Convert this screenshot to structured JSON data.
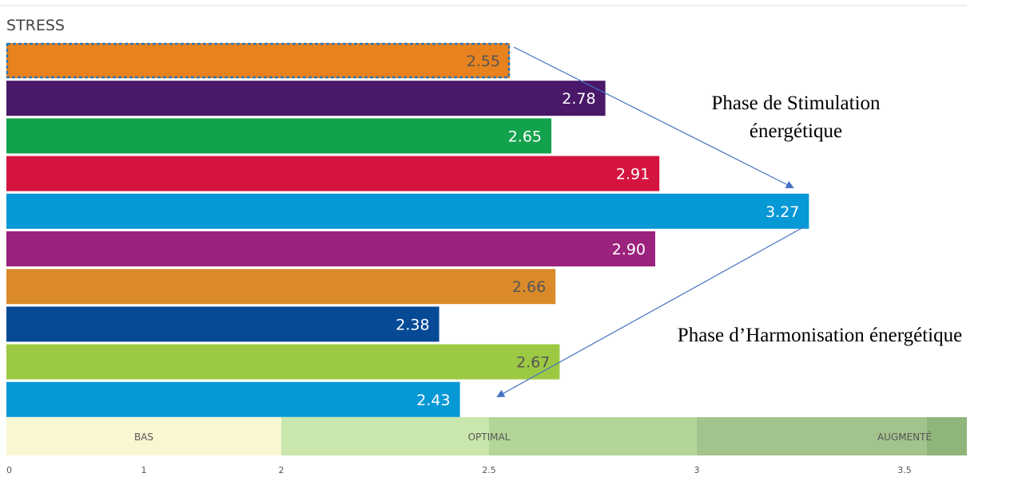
{
  "chart_data": {
    "type": "bar",
    "orientation": "horizontal",
    "title": "STRESS",
    "values": [
      2.55,
      2.78,
      2.65,
      2.91,
      3.27,
      2.9,
      2.66,
      2.38,
      2.67,
      2.43
    ],
    "value_labels": [
      "2.55",
      "2.78",
      "2.65",
      "2.91",
      "3.27",
      "2.90",
      "2.66",
      "2.38",
      "2.67",
      "2.43"
    ],
    "colors": [
      "#E8821E",
      "#4A1868",
      "#12A24C",
      "#D4143F",
      "#0798D6",
      "#9B227D",
      "#DB8A2A",
      "#064A96",
      "#9CC943",
      "#0798D6"
    ],
    "label_colors": [
      "#555555",
      "#ffffff",
      "#ffffff",
      "#ffffff",
      "#ffffff",
      "#ffffff",
      "#555555",
      "#ffffff",
      "#555555",
      "#ffffff"
    ],
    "highlighted_index": 0,
    "x_ticks": [
      "0",
      "1",
      "2",
      "2.5",
      "3",
      "3.5"
    ],
    "bands": [
      {
        "label": "BAS",
        "color": "#FAF6D2"
      },
      {
        "label": "OPTIMAL",
        "color": "#C9E7AC"
      },
      {
        "label": "OPTIMAL_mid",
        "color": "#B3D697"
      },
      {
        "label": "AUGMENTÉ",
        "color": "#A2C38C"
      }
    ],
    "band_labels": [
      "BAS",
      "OPTIMAL",
      "AUGMENTÉ"
    ]
  },
  "annotations": {
    "stimulation_line1": "Phase de Stimulation",
    "stimulation_line2": "énergétique",
    "harmonisation": "Phase d’Harmonisation énergétique"
  },
  "accent": "#4472C4"
}
